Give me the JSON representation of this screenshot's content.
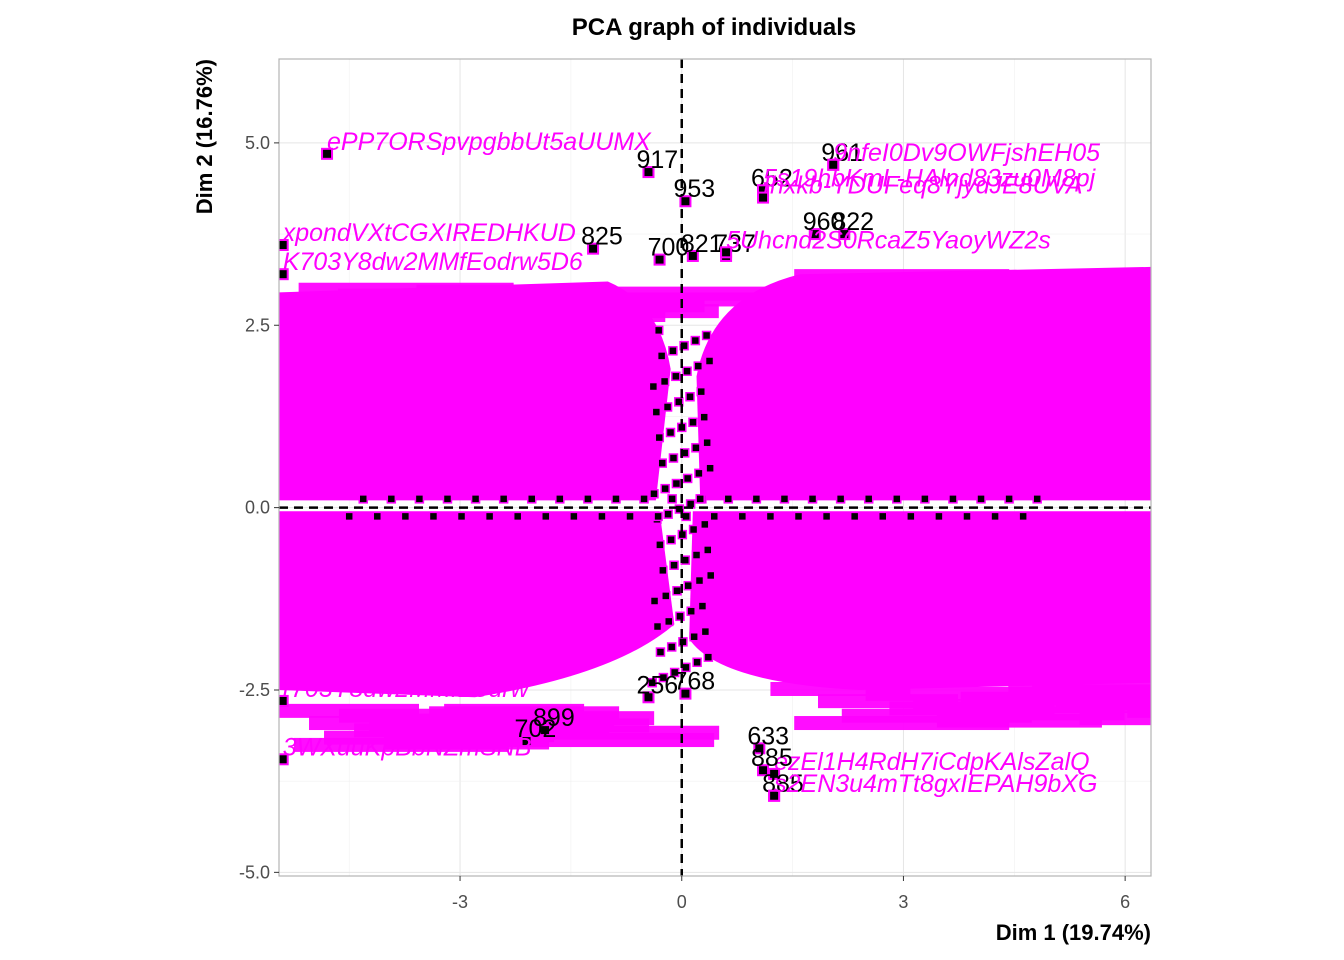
{
  "chart_data": {
    "type": "scatter",
    "title": "PCA graph of individuals",
    "xlabel": "Dim 1 (19.74%)",
    "ylabel": "Dim 2 (16.76%)",
    "xlim": [
      -5.45,
      6.35
    ],
    "ylim": [
      -5.05,
      6.15
    ],
    "xticks": [
      -3,
      0,
      3,
      6
    ],
    "xtick_labels": [
      "-3",
      "0",
      "3",
      "6"
    ],
    "yticks": [
      -5.0,
      -2.5,
      0.0,
      2.5,
      5.0
    ],
    "ytick_labels": [
      "-5.0",
      "-2.5",
      "0.0",
      "2.5",
      "5.0"
    ],
    "grid": true,
    "reference_lines": {
      "x": 0,
      "y": 0
    },
    "colors": {
      "point_fill": "#000000",
      "point_border": "#ff00ff",
      "label_magenta": "#ff00ff",
      "label_black": "#000000",
      "dashed_line": "#000000",
      "grid": "#e5e5e5",
      "panel_border": "#b3b3b3"
    },
    "labeled_points": [
      {
        "x": -0.45,
        "y": 4.6,
        "label": "917"
      },
      {
        "x": -4.8,
        "y": 4.85,
        "label": "ePP7ORSpvpgbbUt5aUUMX"
      },
      {
        "x": 0.05,
        "y": 4.2,
        "label": "953"
      },
      {
        "x": 1.1,
        "y": 4.35,
        "label": "652"
      },
      {
        "x": 1.1,
        "y": 4.35,
        "label": "5s19hbKmL-HAlnd83zu0M8pj"
      },
      {
        "x": 1.1,
        "y": 4.25,
        "label": "Ihxkb-YDUFeq8YjydJE8UVA"
      },
      {
        "x": 2.05,
        "y": 4.7,
        "label": "961"
      },
      {
        "x": 2.05,
        "y": 4.7,
        "label": "9nfeI0Dv9OWFjshEH05"
      },
      {
        "x": -1.2,
        "y": 3.55,
        "label": "825"
      },
      {
        "x": -5.4,
        "y": 3.6,
        "label": "xpondVXtCGXIREDHKUD"
      },
      {
        "x": -5.4,
        "y": 3.2,
        "label": "K703Y8dw2MMfEodrw5D6"
      },
      {
        "x": -0.3,
        "y": 3.4,
        "label": "700"
      },
      {
        "x": 0.15,
        "y": 3.45,
        "label": "821"
      },
      {
        "x": 0.6,
        "y": 3.45,
        "label": "737"
      },
      {
        "x": 1.8,
        "y": 3.75,
        "label": "960"
      },
      {
        "x": 2.2,
        "y": 3.75,
        "label": "822"
      },
      {
        "x": 0.6,
        "y": 3.5,
        "label": "5Uhcnd2S0RcaZ5YaoyWZ2s"
      },
      {
        "x": -1.85,
        "y": -3.05,
        "label": "899"
      },
      {
        "x": -0.45,
        "y": -2.6,
        "label": "256"
      },
      {
        "x": -2.1,
        "y": -3.2,
        "label": "702"
      },
      {
        "x": 0.05,
        "y": -2.55,
        "label": "768"
      },
      {
        "x": 1.05,
        "y": -3.3,
        "label": "633"
      },
      {
        "x": -5.4,
        "y": -3.45,
        "label": "3WXuuKpBbNZmSNB"
      },
      {
        "x": -5.4,
        "y": -2.65,
        "label": "r703Y8dw2MMfEodrw"
      },
      {
        "x": 1.25,
        "y": -3.65,
        "label": "ezEl1H4RdH7iCdpKAlsZalQ"
      },
      {
        "x": 1.1,
        "y": -3.6,
        "label": "885"
      },
      {
        "x": 1.25,
        "y": -3.95,
        "label": "885"
      },
      {
        "x": 1.25,
        "y": -3.95,
        "label": "s2EN3u4mTt8gxIEPAH9bXG"
      }
    ]
  }
}
